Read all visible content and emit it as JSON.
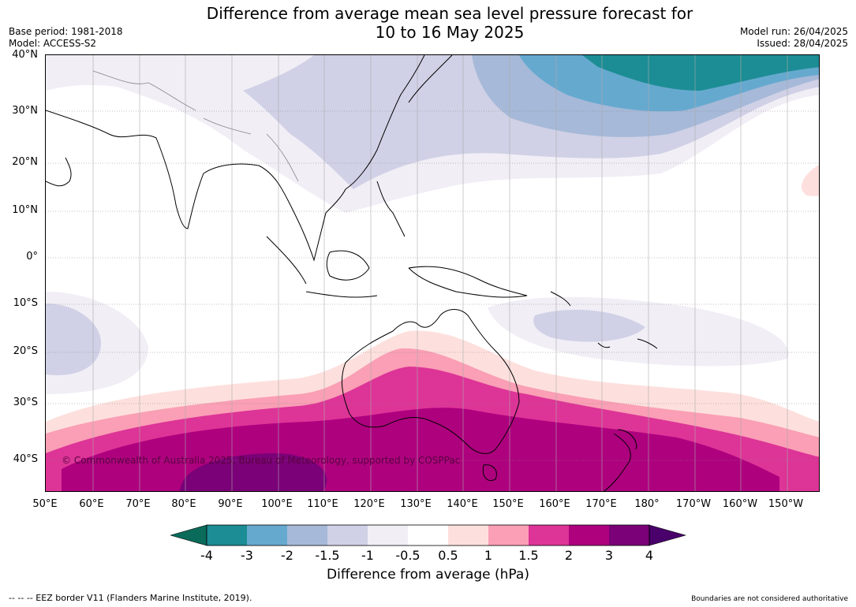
{
  "title_line1": "Difference from average mean sea level pressure forecast for",
  "title_line2": "10 to 16 May 2025",
  "base_period": "Base period: 1981-2018",
  "model": "Model: ACCESS-S2",
  "model_run": "Model run: 26/04/2025",
  "issued": "Issued: 28/04/2025",
  "lat_labels": [
    "40°N",
    "30°N",
    "20°N",
    "10°N",
    "0°",
    "10°S",
    "20°S",
    "30°S",
    "40°S"
  ],
  "lon_labels": [
    "50°E",
    "60°E",
    "70°E",
    "80°E",
    "90°E",
    "100°E",
    "110°E",
    "120°E",
    "130°E",
    "140°E",
    "150°E",
    "160°E",
    "170°E",
    "180°",
    "170°W",
    "160°W",
    "150°W"
  ],
  "copyright": "© Commonwealth of Australia 2025, Bureau of Meteorology, supported by COSPPac",
  "colorbar": {
    "ticks": [
      "-4",
      "-3",
      "-2",
      "-1.5",
      "-1",
      "-0.5",
      "0.5",
      "1",
      "1.5",
      "2",
      "3",
      "4"
    ],
    "colors": [
      "#1c8d94",
      "#66a9cf",
      "#a6b9d8",
      "#d0d1e6",
      "#f1eef6",
      "#ffffff",
      "#fde0dd",
      "#fa9fb5",
      "#dd3497",
      "#ae017e",
      "#7a0177"
    ],
    "under_color": "#0a6b5a",
    "over_color": "#49006a",
    "label": "Difference from average (hPa)"
  },
  "eez_note": "--  --  -- EEZ border V11 (Flanders Marine Institute, 2019).",
  "boundaries_note": "Boundaries are not considered authoritative"
}
